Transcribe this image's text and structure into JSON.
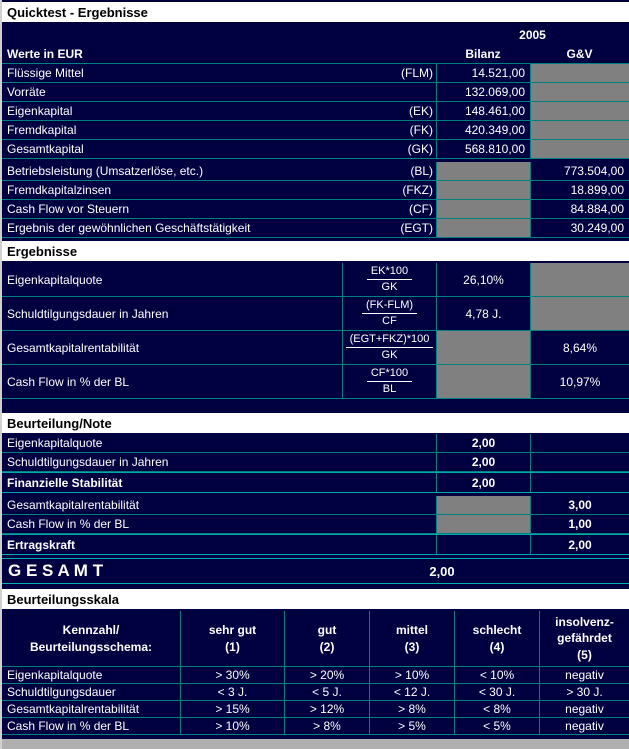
{
  "title": "Quicktest - Ergebnisse",
  "header": {
    "year": "2005",
    "werte": "Werte in EUR",
    "bilanz": "Bilanz",
    "guv": "G&V"
  },
  "sections": {
    "ergebnisse": "Ergebnisse",
    "beurteilung": "Beurteilung/Note",
    "skala": "Beurteilungsskala"
  },
  "werte_rows": [
    {
      "label": "Flüssige Mittel",
      "abbr": "(FLM)",
      "value": "14.521,00"
    },
    {
      "label": "Vorräte",
      "abbr": "",
      "value": "132.069,00"
    },
    {
      "label": "Eigenkapital",
      "abbr": "(EK)",
      "value": "148.461,00"
    },
    {
      "label": "Fremdkapital",
      "abbr": "(FK)",
      "value": "420.349,00"
    },
    {
      "label": "Gesamtkapital",
      "abbr": "(GK)",
      "value": "568.810,00"
    },
    {
      "label": "Betriebsleistung (Umsatzerlöse, etc.)",
      "abbr": "(BL)",
      "value": "773.504,00"
    },
    {
      "label": "Fremdkapitalzinsen",
      "abbr": "(FKZ)",
      "value": "18.899,00"
    },
    {
      "label": "Cash Flow vor Steuern",
      "abbr": "(CF)",
      "value": "84.884,00"
    },
    {
      "label": "Ergebnis der gewöhnlichen Geschäftstätigkeit",
      "abbr": "(EGT)",
      "value": "30.249,00"
    }
  ],
  "ratio_rows": [
    {
      "label": "Eigenkapitalquote",
      "num": "EK*100",
      "den": "GK",
      "value": "26,10%"
    },
    {
      "label": "Schuldtilgungsdauer in Jahren",
      "num": "(FK-FLM)",
      "den": "CF",
      "value": "4,78 J."
    },
    {
      "label": "Gesamtkapitalrentabilität",
      "num": "(EGT+FKZ)*100",
      "den": "GK",
      "value": "8,64%"
    },
    {
      "label": "Cash Flow in % der BL",
      "num": "CF*100",
      "den": "BL",
      "value": "10,97%"
    }
  ],
  "note_rows": [
    {
      "label": "Eigenkapitalquote",
      "value": "2,00"
    },
    {
      "label": "Schuldtilgungsdauer in Jahren",
      "value": "2,00"
    },
    {
      "label": "Finanzielle Stabilität",
      "value": "2,00"
    },
    {
      "label": "Gesamtkapitalrentabilität",
      "value": "3,00"
    },
    {
      "label": "Cash Flow in % der BL",
      "value": "1,00"
    },
    {
      "label": "Ertragskraft",
      "value": "2,00"
    }
  ],
  "gesamt": {
    "label": "G E S A M T",
    "value": "2,00"
  },
  "skala": {
    "headers": [
      "Kennzahl/\nBeurteilungsschema:",
      "sehr gut\n(1)",
      "gut\n(2)",
      "mittel\n(3)",
      "schlecht\n(4)",
      "insolvenz-\ngefährdet\n(5)"
    ],
    "rows": [
      {
        "label": "Eigenkapitalquote",
        "v1": "> 30%",
        "v2": "> 20%",
        "v3": "> 10%",
        "v4": "< 10%",
        "v5": "negativ"
      },
      {
        "label": "Schuldtilgungsdauer",
        "v1": "< 3 J.",
        "v2": "< 5 J.",
        "v3": "< 12 J.",
        "v4": "< 30 J.",
        "v5": "> 30 J."
      },
      {
        "label": "Gesamtkapitalrentabilität",
        "v1": "> 15%",
        "v2": "> 12%",
        "v3": "> 8%",
        "v4": "< 8%",
        "v5": "negativ"
      },
      {
        "label": "Cash Flow in % der BL",
        "v1": "> 10%",
        "v2": "> 8%",
        "v3": "> 5%",
        "v4": "< 5%",
        "v5": "negativ"
      }
    ]
  },
  "colors": {
    "background_navy": "#000040",
    "grid_teal": "#008080",
    "disabled_gray": "#808080",
    "section_bar_white": "#ffffff"
  }
}
